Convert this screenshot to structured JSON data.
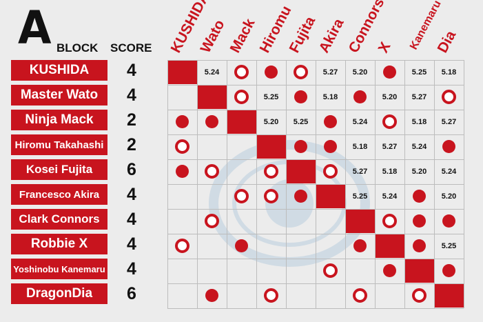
{
  "header": {
    "block_letter": "A",
    "block_word": "BLOCK",
    "score_label": "SCORE"
  },
  "columns": [
    "KUSHIDA",
    "Wato",
    "Mack",
    "Hiromu",
    "Fujita",
    "Akira",
    "Connors",
    "X",
    "Kanemaru",
    "Dia"
  ],
  "rows": [
    {
      "name": "KUSHIDA",
      "score": "4",
      "cells": [
        "self",
        "5.24",
        "loss",
        "win",
        "loss",
        "5.27",
        "5.20",
        "win",
        "5.25",
        "5.18"
      ]
    },
    {
      "name": "Master Wato",
      "score": "4",
      "cells": [
        "",
        "self",
        "loss",
        "5.25",
        "win",
        "5.18",
        "win",
        "5.20",
        "5.27",
        "loss"
      ]
    },
    {
      "name": "Ninja Mack",
      "score": "2",
      "cells": [
        "win",
        "win",
        "self",
        "5.20",
        "5.25",
        "win",
        "5.24",
        "loss",
        "5.18",
        "5.27"
      ]
    },
    {
      "name": "Hiromu Takahashi",
      "score": "2",
      "cells": [
        "loss",
        "",
        "",
        "self",
        "win",
        "win",
        "5.18",
        "5.27",
        "5.24",
        "win"
      ]
    },
    {
      "name": "Kosei Fujita",
      "score": "6",
      "cells": [
        "win",
        "loss",
        "",
        "loss",
        "self",
        "loss",
        "5.27",
        "5.18",
        "5.20",
        "5.24"
      ]
    },
    {
      "name": "Francesco Akira",
      "score": "4",
      "cells": [
        "",
        "",
        "loss",
        "loss",
        "win",
        "self",
        "5.25",
        "5.24",
        "win",
        "5.20"
      ]
    },
    {
      "name": "Clark Connors",
      "score": "4",
      "cells": [
        "",
        "loss",
        "",
        "",
        "",
        "",
        "self",
        "loss",
        "win",
        "win"
      ]
    },
    {
      "name": "Robbie X",
      "score": "4",
      "cells": [
        "loss",
        "",
        "win",
        "",
        "",
        "",
        "win",
        "self",
        "win",
        "5.25"
      ]
    },
    {
      "name": "Yoshinobu Kanemaru",
      "score": "4",
      "cells": [
        "",
        "",
        "",
        "",
        "",
        "loss",
        "",
        "win",
        "self",
        "win"
      ]
    },
    {
      "name": "DragonDia",
      "score": "6",
      "cells": [
        "",
        "win",
        "",
        "loss",
        "",
        "",
        "loss",
        "",
        "loss",
        "self"
      ]
    }
  ],
  "colors": {
    "accent": "#c8141e",
    "background": "#ececec"
  },
  "icons": {
    "win": "filled-circle-icon",
    "loss": "hollow-circle-icon",
    "self": "red-square"
  }
}
